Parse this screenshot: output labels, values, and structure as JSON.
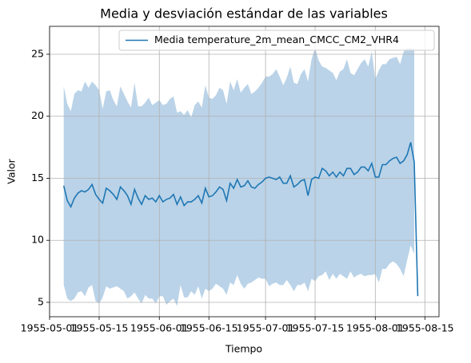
{
  "chart_data": {
    "type": "line",
    "title": "Media y desviación estándar de las variables",
    "xlabel": "Tiempo",
    "ylabel": "Valor",
    "x": [
      "1955-05-05",
      "1955-05-06",
      "1955-05-07",
      "1955-05-08",
      "1955-05-09",
      "1955-05-10",
      "1955-05-11",
      "1955-05-12",
      "1955-05-13",
      "1955-05-14",
      "1955-05-15",
      "1955-05-16",
      "1955-05-17",
      "1955-05-18",
      "1955-05-19",
      "1955-05-20",
      "1955-05-21",
      "1955-05-22",
      "1955-05-23",
      "1955-05-24",
      "1955-05-25",
      "1955-05-26",
      "1955-05-27",
      "1955-05-28",
      "1955-05-29",
      "1955-05-30",
      "1955-05-31",
      "1955-06-01",
      "1955-06-02",
      "1955-06-03",
      "1955-06-04",
      "1955-06-05",
      "1955-06-06",
      "1955-06-07",
      "1955-06-08",
      "1955-06-09",
      "1955-06-10",
      "1955-06-11",
      "1955-06-12",
      "1955-06-13",
      "1955-06-14",
      "1955-06-15",
      "1955-06-16",
      "1955-06-17",
      "1955-06-18",
      "1955-06-19",
      "1955-06-20",
      "1955-06-21",
      "1955-06-22",
      "1955-06-23",
      "1955-06-24",
      "1955-06-25",
      "1955-06-26",
      "1955-06-27",
      "1955-06-28",
      "1955-06-29",
      "1955-06-30",
      "1955-07-01",
      "1955-07-02",
      "1955-07-03",
      "1955-07-04",
      "1955-07-05",
      "1955-07-06",
      "1955-07-07",
      "1955-07-08",
      "1955-07-09",
      "1955-07-10",
      "1955-07-11",
      "1955-07-12",
      "1955-07-13",
      "1955-07-14",
      "1955-07-15",
      "1955-07-16",
      "1955-07-17",
      "1955-07-18",
      "1955-07-19",
      "1955-07-20",
      "1955-07-21",
      "1955-07-22",
      "1955-07-23",
      "1955-07-24",
      "1955-07-25",
      "1955-07-26",
      "1955-07-27",
      "1955-07-28",
      "1955-07-29",
      "1955-07-30",
      "1955-07-31",
      "1955-08-01",
      "1955-08-02",
      "1955-08-03",
      "1955-08-04",
      "1955-08-05",
      "1955-08-06",
      "1955-08-07",
      "1955-08-08",
      "1955-08-09",
      "1955-08-10",
      "1955-08-11",
      "1955-08-12",
      "1955-08-13"
    ],
    "series": [
      {
        "name": "Media temperature_2m_mean_CMCC_CM2_VHR4",
        "color": "#1f77b4",
        "values": [
          14.4,
          13.2,
          12.7,
          13.4,
          13.8,
          14.0,
          13.9,
          14.1,
          14.5,
          13.7,
          13.3,
          13.0,
          14.2,
          14.0,
          13.7,
          13.3,
          14.3,
          14.0,
          13.6,
          12.9,
          14.1,
          13.4,
          12.9,
          13.6,
          13.3,
          13.4,
          13.1,
          13.6,
          13.1,
          13.3,
          13.4,
          13.7,
          12.9,
          13.5,
          12.8,
          13.1,
          13.1,
          13.3,
          13.6,
          13.0,
          14.2,
          13.5,
          13.6,
          13.9,
          14.3,
          14.1,
          13.2,
          14.6,
          14.2,
          14.9,
          14.3,
          14.4,
          14.8,
          14.3,
          14.2,
          14.5,
          14.7,
          15.0,
          15.1,
          15.0,
          14.9,
          15.1,
          14.6,
          14.6,
          15.2,
          14.3,
          14.5,
          14.8,
          14.9,
          13.6,
          14.9,
          15.1,
          15.0,
          15.8,
          15.6,
          15.2,
          15.5,
          15.1,
          15.5,
          15.2,
          15.8,
          15.8,
          15.3,
          15.5,
          15.9,
          15.9,
          15.6,
          16.2,
          15.1,
          15.1,
          16.1,
          16.1,
          16.4,
          16.6,
          16.7,
          16.2,
          16.4,
          16.9,
          17.9,
          16.3,
          5.5
        ],
        "upper": [
          22.4,
          21.0,
          20.4,
          21.8,
          22.1,
          22.0,
          22.8,
          22.3,
          22.8,
          22.5,
          22.1,
          20.6,
          22.0,
          22.1,
          21.3,
          20.8,
          22.4,
          21.8,
          21.2,
          20.7,
          22.7,
          20.8,
          20.8,
          21.1,
          21.5,
          20.9,
          21.1,
          21.3,
          20.9,
          21.0,
          21.4,
          21.6,
          20.3,
          20.4,
          20.1,
          20.5,
          19.9,
          20.9,
          21.2,
          20.7,
          22.5,
          21.5,
          21.4,
          21.7,
          22.3,
          22.1,
          21.0,
          22.8,
          22.1,
          23.0,
          21.9,
          22.3,
          22.6,
          21.8,
          22.0,
          22.3,
          22.7,
          23.2,
          23.2,
          23.4,
          23.8,
          23.2,
          22.5,
          23.1,
          24.0,
          22.7,
          22.6,
          23.4,
          23.8,
          22.8,
          24.6,
          25.5,
          24.5,
          24.0,
          23.9,
          23.7,
          23.5,
          22.9,
          23.6,
          23.8,
          24.6,
          23.5,
          23.3,
          23.8,
          24.3,
          24.6,
          24.0,
          25.2,
          23.0,
          23.7,
          24.2,
          24.2,
          24.6,
          24.7,
          24.8,
          24.2,
          25.2,
          25.5,
          25.5,
          25.4,
          null
        ],
        "lower": [
          6.4,
          5.3,
          5.1,
          5.3,
          5.8,
          5.9,
          5.5,
          6.2,
          6.4,
          5.1,
          4.9,
          5.4,
          6.3,
          6.1,
          6.2,
          6.3,
          6.1,
          5.9,
          5.3,
          5.5,
          5.8,
          5.3,
          4.9,
          5.6,
          5.3,
          5.3,
          4.9,
          5.5,
          5.5,
          4.8,
          5.1,
          5.3,
          4.7,
          6.4,
          5.4,
          5.4,
          5.9,
          5.6,
          6.3,
          5.3,
          6.1,
          5.9,
          6.1,
          6.5,
          6.3,
          6.1,
          5.6,
          6.6,
          6.4,
          7.2,
          6.5,
          6.1,
          6.5,
          6.6,
          6.8,
          7.0,
          6.9,
          6.9,
          6.3,
          6.5,
          6.6,
          6.4,
          6.4,
          6.8,
          6.4,
          5.9,
          6.4,
          6.4,
          6.6,
          5.9,
          6.9,
          6.7,
          7.1,
          7.2,
          7.5,
          6.8,
          7.3,
          6.9,
          7.3,
          7.1,
          6.9,
          7.5,
          7.0,
          7.2,
          7.3,
          7.1,
          7.2,
          7.2,
          7.3,
          6.6,
          7.7,
          7.7,
          8.1,
          8.3,
          8.1,
          7.7,
          7.1,
          8.4,
          9.6,
          8.9,
          null
        ],
        "band_color": "#bad3e8"
      }
    ],
    "xlim": [
      "1955-05-01",
      "1955-08-19"
    ],
    "xticks": [
      "1955-05-01",
      "1955-05-15",
      "1955-06-01",
      "1955-06-15",
      "1955-07-01",
      "1955-07-15",
      "1955-08-01",
      "1955-08-15"
    ],
    "ylim": [
      3.84,
      27.25
    ],
    "yticks": [
      5,
      10,
      15,
      20,
      25
    ],
    "grid": true,
    "legend": "upper right"
  }
}
